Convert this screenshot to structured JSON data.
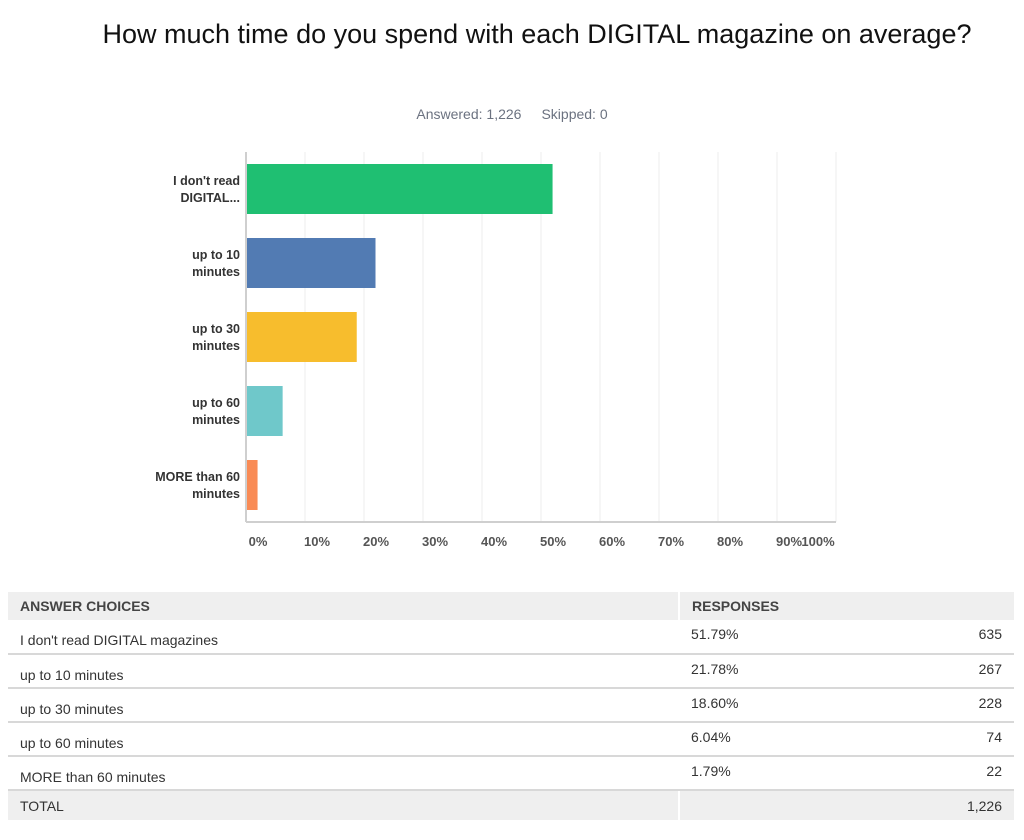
{
  "chart_data": {
    "type": "bar",
    "orientation": "horizontal",
    "title": "How much time do you spend with each DIGITAL magazine on average?",
    "answered_label": "Answered: 1,226",
    "skipped_label": "Skipped: 0",
    "categories": [
      [
        "I don't read",
        "DIGITAL..."
      ],
      [
        "up to 10",
        "minutes"
      ],
      [
        "up to 30",
        "minutes"
      ],
      [
        "up to 60",
        "minutes"
      ],
      [
        "MORE than 60",
        "minutes"
      ]
    ],
    "values": [
      51.79,
      21.78,
      18.6,
      6.04,
      1.79
    ],
    "colors": [
      "#1fbf72",
      "#527bb3",
      "#f7bd2d",
      "#6fc8ca",
      "#f98b55"
    ],
    "xlim": [
      0,
      100
    ],
    "xticks": [
      "0%",
      "10%",
      "20%",
      "30%",
      "40%",
      "50%",
      "60%",
      "70%",
      "80%",
      "90%",
      "100%"
    ],
    "grid": true
  },
  "table": {
    "headers": [
      "ANSWER CHOICES",
      "RESPONSES"
    ],
    "rows": [
      {
        "choice": "I don't read DIGITAL magazines",
        "percent": "51.79%",
        "count": "635"
      },
      {
        "choice": "up to 10 minutes",
        "percent": "21.78%",
        "count": "267"
      },
      {
        "choice": "up to 30 minutes",
        "percent": "18.60%",
        "count": "228"
      },
      {
        "choice": "up to 60 minutes",
        "percent": "6.04%",
        "count": "74"
      },
      {
        "choice": "MORE than 60 minutes",
        "percent": "1.79%",
        "count": "22"
      }
    ],
    "total_label": "TOTAL",
    "total_count": "1,226"
  }
}
